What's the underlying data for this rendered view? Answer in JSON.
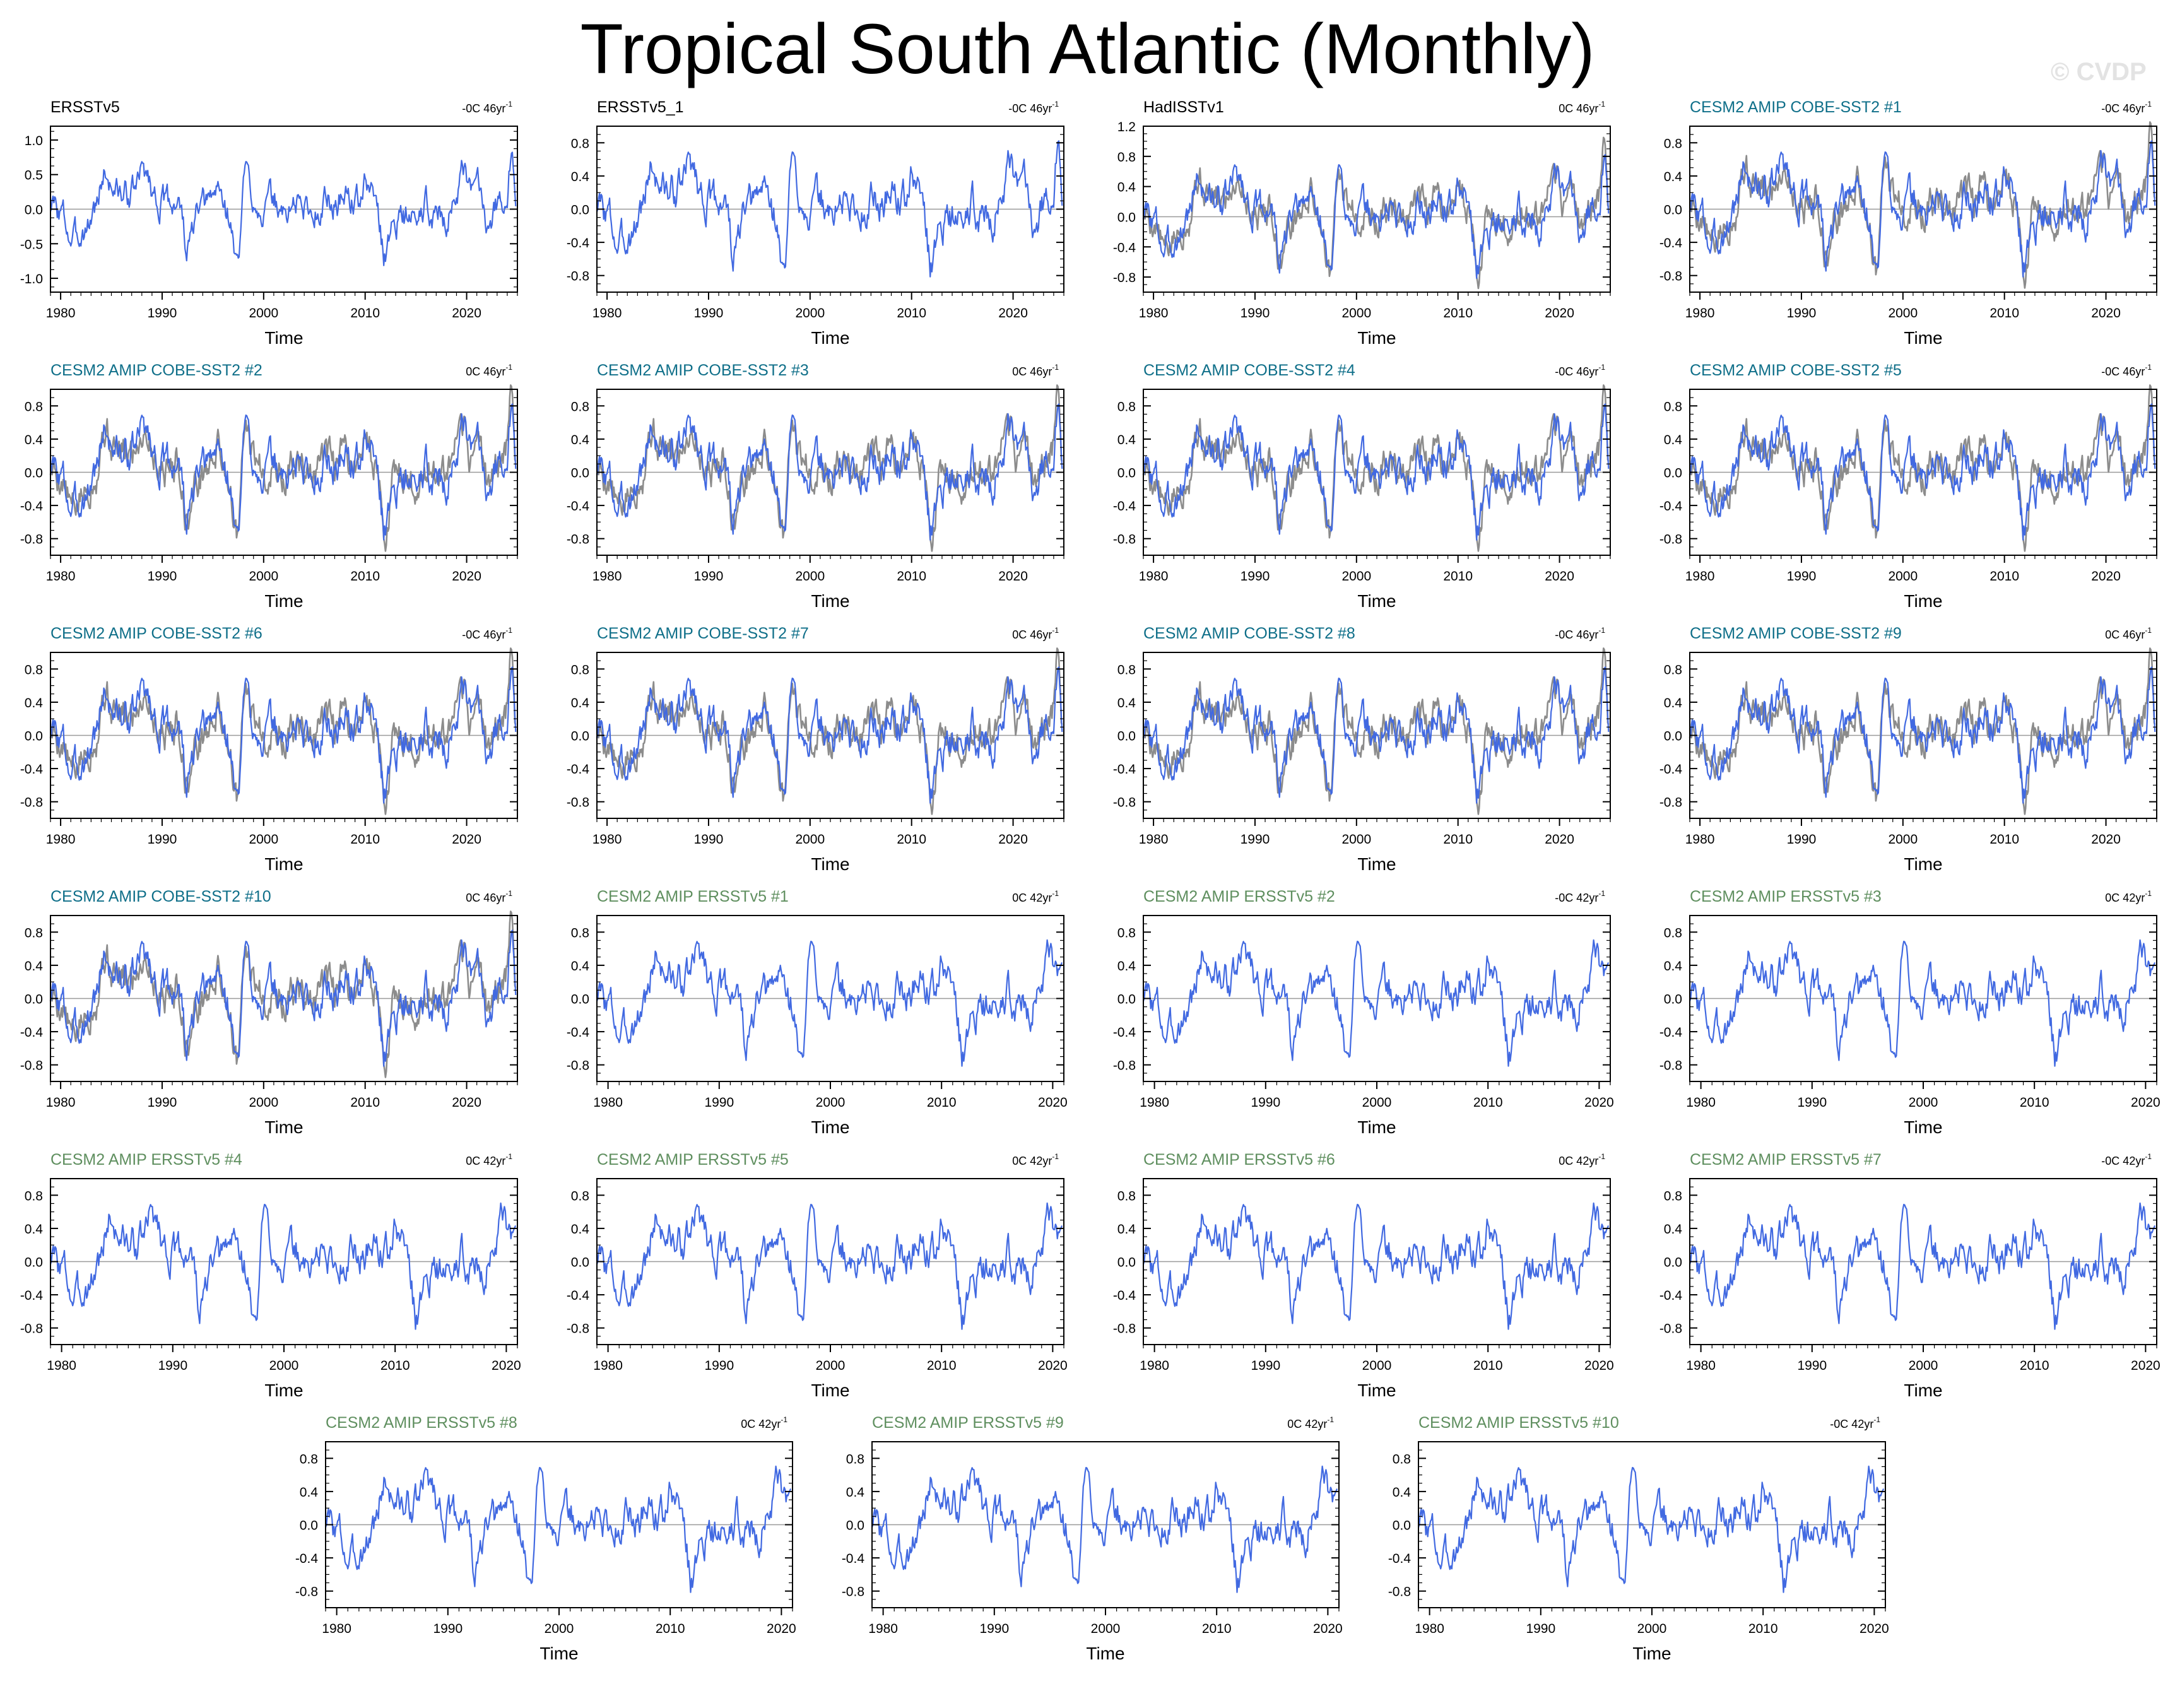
{
  "title": "Tropical South Atlantic (Monthly)",
  "watermark": "© CVDP",
  "colors": {
    "model_line": "#4169e1",
    "obs_line": "#8c8c8c",
    "title_obs": "#000000",
    "title_cobe": "#0f6f89",
    "title_ersst": "#5f8f5f",
    "zero_line": "#9a9a9a"
  },
  "chart_data": [
    {
      "type": "line",
      "title": "ERSSTv5",
      "title_group": "obs",
      "trend": "-0C 46yr",
      "trend_unit": "-1",
      "xlabel": "Time",
      "xlim": [
        1979,
        2025
      ],
      "ylim": [
        -1.2,
        1.2
      ],
      "yticks": [
        1.0,
        0.5,
        0.0,
        -0.5,
        -1.0
      ],
      "ytick_labels": [
        "1.0",
        "0.5",
        "0.0",
        "-0.5",
        "-1.0"
      ],
      "xticks": [
        1980,
        1990,
        2000,
        2010,
        2020
      ],
      "series": [
        {
          "seed": 3,
          "end_year": 2024.9
        }
      ]
    },
    {
      "type": "line",
      "title": "ERSSTv5_1",
      "title_group": "obs",
      "trend": "-0C 46yr",
      "trend_unit": "-1",
      "xlabel": "Time",
      "xlim": [
        1979,
        2025
      ],
      "ylim": [
        -1.0,
        1.0
      ],
      "yticks": [
        0.8,
        0.4,
        0.0,
        -0.4,
        -0.8
      ],
      "ytick_labels": [
        "0.8",
        "0.4",
        "0.0",
        "-0.4",
        "-0.8"
      ],
      "xticks": [
        1980,
        1990,
        2000,
        2010,
        2020
      ],
      "series": [
        {
          "seed": 3,
          "end_year": 2024.9
        }
      ]
    },
    {
      "type": "line",
      "title": "HadISSTv1",
      "title_group": "obs",
      "trend": "0C 46yr",
      "trend_unit": "-1",
      "xlabel": "Time",
      "xlim": [
        1979,
        2025
      ],
      "ylim": [
        -1.0,
        1.2
      ],
      "yticks": [
        1.2,
        0.8,
        0.4,
        0.0,
        -0.4,
        -0.8
      ],
      "ytick_labels": [
        "1.2",
        "0.8",
        "0.4",
        "0.0",
        "-0.4",
        "-0.8"
      ],
      "xticks": [
        1980,
        1990,
        2000,
        2010,
        2020
      ],
      "series": [
        {
          "seed": 5,
          "end_year": 2024.9
        },
        {
          "seed": 3,
          "end_year": 2024.9
        }
      ]
    },
    {
      "type": "line",
      "title": "CESM2 AMIP COBE-SST2 #1",
      "title_group": "cobe",
      "trend": "-0C 46yr",
      "trend_unit": "-1",
      "xlabel": "Time",
      "xlim": [
        1979,
        2025
      ],
      "ylim": [
        -1.0,
        1.0
      ],
      "yticks": [
        0.8,
        0.4,
        0.0,
        -0.4,
        -0.8
      ],
      "ytick_labels": [
        "0.8",
        "0.4",
        "0.0",
        "-0.4",
        "-0.8"
      ],
      "xticks": [
        1980,
        1990,
        2000,
        2010,
        2020
      ],
      "series": [
        {
          "seed": 5,
          "end_year": 2024.9
        },
        {
          "seed": 3,
          "end_year": 2024.9
        }
      ]
    },
    {
      "type": "line",
      "title": "CESM2 AMIP COBE-SST2 #2",
      "title_group": "cobe",
      "trend": "0C 46yr",
      "trend_unit": "-1",
      "xlabel": "Time",
      "xlim": [
        1979,
        2025
      ],
      "ylim": [
        -1.0,
        1.0
      ],
      "yticks": [
        0.8,
        0.4,
        0.0,
        -0.4,
        -0.8
      ],
      "ytick_labels": [
        "0.8",
        "0.4",
        "0.0",
        "-0.4",
        "-0.8"
      ],
      "xticks": [
        1980,
        1990,
        2000,
        2010,
        2020
      ],
      "series": [
        {
          "seed": 5,
          "end_year": 2024.9
        },
        {
          "seed": 3,
          "end_year": 2024.9
        }
      ]
    },
    {
      "type": "line",
      "title": "CESM2 AMIP COBE-SST2 #3",
      "title_group": "cobe",
      "trend": "0C 46yr",
      "trend_unit": "-1",
      "xlabel": "Time",
      "xlim": [
        1979,
        2025
      ],
      "ylim": [
        -1.0,
        1.0
      ],
      "yticks": [
        0.8,
        0.4,
        0.0,
        -0.4,
        -0.8
      ],
      "ytick_labels": [
        "0.8",
        "0.4",
        "0.0",
        "-0.4",
        "-0.8"
      ],
      "xticks": [
        1980,
        1990,
        2000,
        2010,
        2020
      ],
      "series": [
        {
          "seed": 5,
          "end_year": 2024.9
        },
        {
          "seed": 3,
          "end_year": 2024.9
        }
      ]
    },
    {
      "type": "line",
      "title": "CESM2 AMIP COBE-SST2 #4",
      "title_group": "cobe",
      "trend": "-0C 46yr",
      "trend_unit": "-1",
      "xlabel": "Time",
      "xlim": [
        1979,
        2025
      ],
      "ylim": [
        -1.0,
        1.0
      ],
      "yticks": [
        0.8,
        0.4,
        0.0,
        -0.4,
        -0.8
      ],
      "ytick_labels": [
        "0.8",
        "0.4",
        "0.0",
        "-0.4",
        "-0.8"
      ],
      "xticks": [
        1980,
        1990,
        2000,
        2010,
        2020
      ],
      "series": [
        {
          "seed": 5,
          "end_year": 2024.9
        },
        {
          "seed": 3,
          "end_year": 2024.9
        }
      ]
    },
    {
      "type": "line",
      "title": "CESM2 AMIP COBE-SST2 #5",
      "title_group": "cobe",
      "trend": "-0C 46yr",
      "trend_unit": "-1",
      "xlabel": "Time",
      "xlim": [
        1979,
        2025
      ],
      "ylim": [
        -1.0,
        1.0
      ],
      "yticks": [
        0.8,
        0.4,
        0.0,
        -0.4,
        -0.8
      ],
      "ytick_labels": [
        "0.8",
        "0.4",
        "0.0",
        "-0.4",
        "-0.8"
      ],
      "xticks": [
        1980,
        1990,
        2000,
        2010,
        2020
      ],
      "series": [
        {
          "seed": 5,
          "end_year": 2024.9
        },
        {
          "seed": 3,
          "end_year": 2024.9
        }
      ]
    },
    {
      "type": "line",
      "title": "CESM2 AMIP COBE-SST2 #6",
      "title_group": "cobe",
      "trend": "-0C 46yr",
      "trend_unit": "-1",
      "xlabel": "Time",
      "xlim": [
        1979,
        2025
      ],
      "ylim": [
        -1.0,
        1.0
      ],
      "yticks": [
        0.8,
        0.4,
        0.0,
        -0.4,
        -0.8
      ],
      "ytick_labels": [
        "0.8",
        "0.4",
        "0.0",
        "-0.4",
        "-0.8"
      ],
      "xticks": [
        1980,
        1990,
        2000,
        2010,
        2020
      ],
      "series": [
        {
          "seed": 5,
          "end_year": 2024.9
        },
        {
          "seed": 3,
          "end_year": 2024.9
        }
      ]
    },
    {
      "type": "line",
      "title": "CESM2 AMIP COBE-SST2 #7",
      "title_group": "cobe",
      "trend": "0C 46yr",
      "trend_unit": "-1",
      "xlabel": "Time",
      "xlim": [
        1979,
        2025
      ],
      "ylim": [
        -1.0,
        1.0
      ],
      "yticks": [
        0.8,
        0.4,
        0.0,
        -0.4,
        -0.8
      ],
      "ytick_labels": [
        "0.8",
        "0.4",
        "0.0",
        "-0.4",
        "-0.8"
      ],
      "xticks": [
        1980,
        1990,
        2000,
        2010,
        2020
      ],
      "series": [
        {
          "seed": 5,
          "end_year": 2024.9
        },
        {
          "seed": 3,
          "end_year": 2024.9
        }
      ]
    },
    {
      "type": "line",
      "title": "CESM2 AMIP COBE-SST2 #8",
      "title_group": "cobe",
      "trend": "-0C 46yr",
      "trend_unit": "-1",
      "xlabel": "Time",
      "xlim": [
        1979,
        2025
      ],
      "ylim": [
        -1.0,
        1.0
      ],
      "yticks": [
        0.8,
        0.4,
        0.0,
        -0.4,
        -0.8
      ],
      "ytick_labels": [
        "0.8",
        "0.4",
        "0.0",
        "-0.4",
        "-0.8"
      ],
      "xticks": [
        1980,
        1990,
        2000,
        2010,
        2020
      ],
      "series": [
        {
          "seed": 5,
          "end_year": 2024.9
        },
        {
          "seed": 3,
          "end_year": 2024.9
        }
      ]
    },
    {
      "type": "line",
      "title": "CESM2 AMIP COBE-SST2 #9",
      "title_group": "cobe",
      "trend": "0C 46yr",
      "trend_unit": "-1",
      "xlabel": "Time",
      "xlim": [
        1979,
        2025
      ],
      "ylim": [
        -1.0,
        1.0
      ],
      "yticks": [
        0.8,
        0.4,
        0.0,
        -0.4,
        -0.8
      ],
      "ytick_labels": [
        "0.8",
        "0.4",
        "0.0",
        "-0.4",
        "-0.8"
      ],
      "xticks": [
        1980,
        1990,
        2000,
        2010,
        2020
      ],
      "series": [
        {
          "seed": 5,
          "end_year": 2024.9
        },
        {
          "seed": 3,
          "end_year": 2024.9
        }
      ]
    },
    {
      "type": "line",
      "title": "CESM2 AMIP COBE-SST2 #10",
      "title_group": "cobe",
      "trend": "0C 46yr",
      "trend_unit": "-1",
      "xlabel": "Time",
      "xlim": [
        1979,
        2025
      ],
      "ylim": [
        -1.0,
        1.0
      ],
      "yticks": [
        0.8,
        0.4,
        0.0,
        -0.4,
        -0.8
      ],
      "ytick_labels": [
        "0.8",
        "0.4",
        "0.0",
        "-0.4",
        "-0.8"
      ],
      "xticks": [
        1980,
        1990,
        2000,
        2010,
        2020
      ],
      "series": [
        {
          "seed": 5,
          "end_year": 2024.9
        },
        {
          "seed": 3,
          "end_year": 2024.9
        }
      ]
    },
    {
      "type": "line",
      "title": "CESM2 AMIP ERSSTv5 #1",
      "title_group": "ersst",
      "trend": "0C 42yr",
      "trend_unit": "-1",
      "xlabel": "Time",
      "xlim": [
        1979,
        2021
      ],
      "ylim": [
        -1.0,
        1.0
      ],
      "yticks": [
        0.8,
        0.4,
        0.0,
        -0.4,
        -0.8
      ],
      "ytick_labels": [
        "0.8",
        "0.4",
        "0.0",
        "-0.4",
        "-0.8"
      ],
      "xticks": [
        1980,
        1990,
        2000,
        2010,
        2020
      ],
      "series": [
        {
          "seed": 3,
          "end_year": 2020.9
        }
      ]
    },
    {
      "type": "line",
      "title": "CESM2 AMIP ERSSTv5 #2",
      "title_group": "ersst",
      "trend": "-0C 42yr",
      "trend_unit": "-1",
      "xlabel": "Time",
      "xlim": [
        1979,
        2021
      ],
      "ylim": [
        -1.0,
        1.0
      ],
      "yticks": [
        0.8,
        0.4,
        0.0,
        -0.4,
        -0.8
      ],
      "ytick_labels": [
        "0.8",
        "0.4",
        "0.0",
        "-0.4",
        "-0.8"
      ],
      "xticks": [
        1980,
        1990,
        2000,
        2010,
        2020
      ],
      "series": [
        {
          "seed": 3,
          "end_year": 2020.9
        }
      ]
    },
    {
      "type": "line",
      "title": "CESM2 AMIP ERSSTv5 #3",
      "title_group": "ersst",
      "trend": "0C 42yr",
      "trend_unit": "-1",
      "xlabel": "Time",
      "xlim": [
        1979,
        2021
      ],
      "ylim": [
        -1.0,
        1.0
      ],
      "yticks": [
        0.8,
        0.4,
        0.0,
        -0.4,
        -0.8
      ],
      "ytick_labels": [
        "0.8",
        "0.4",
        "0.0",
        "-0.4",
        "-0.8"
      ],
      "xticks": [
        1980,
        1990,
        2000,
        2010,
        2020
      ],
      "series": [
        {
          "seed": 3,
          "end_year": 2020.9
        }
      ]
    },
    {
      "type": "line",
      "title": "CESM2 AMIP ERSSTv5 #4",
      "title_group": "ersst",
      "trend": "0C 42yr",
      "trend_unit": "-1",
      "xlabel": "Time",
      "xlim": [
        1979,
        2021
      ],
      "ylim": [
        -1.0,
        1.0
      ],
      "yticks": [
        0.8,
        0.4,
        0.0,
        -0.4,
        -0.8
      ],
      "ytick_labels": [
        "0.8",
        "0.4",
        "0.0",
        "-0.4",
        "-0.8"
      ],
      "xticks": [
        1980,
        1990,
        2000,
        2010,
        2020
      ],
      "series": [
        {
          "seed": 3,
          "end_year": 2020.9
        }
      ]
    },
    {
      "type": "line",
      "title": "CESM2 AMIP ERSSTv5 #5",
      "title_group": "ersst",
      "trend": "0C 42yr",
      "trend_unit": "-1",
      "xlabel": "Time",
      "xlim": [
        1979,
        2021
      ],
      "ylim": [
        -1.0,
        1.0
      ],
      "yticks": [
        0.8,
        0.4,
        0.0,
        -0.4,
        -0.8
      ],
      "ytick_labels": [
        "0.8",
        "0.4",
        "0.0",
        "-0.4",
        "-0.8"
      ],
      "xticks": [
        1980,
        1990,
        2000,
        2010,
        2020
      ],
      "series": [
        {
          "seed": 3,
          "end_year": 2020.9
        }
      ]
    },
    {
      "type": "line",
      "title": "CESM2 AMIP ERSSTv5 #6",
      "title_group": "ersst",
      "trend": "0C 42yr",
      "trend_unit": "-1",
      "xlabel": "Time",
      "xlim": [
        1979,
        2021
      ],
      "ylim": [
        -1.0,
        1.0
      ],
      "yticks": [
        0.8,
        0.4,
        0.0,
        -0.4,
        -0.8
      ],
      "ytick_labels": [
        "0.8",
        "0.4",
        "0.0",
        "-0.4",
        "-0.8"
      ],
      "xticks": [
        1980,
        1990,
        2000,
        2010,
        2020
      ],
      "series": [
        {
          "seed": 3,
          "end_year": 2020.9
        }
      ]
    },
    {
      "type": "line",
      "title": "CESM2 AMIP ERSSTv5 #7",
      "title_group": "ersst",
      "trend": "-0C 42yr",
      "trend_unit": "-1",
      "xlabel": "Time",
      "xlim": [
        1979,
        2021
      ],
      "ylim": [
        -1.0,
        1.0
      ],
      "yticks": [
        0.8,
        0.4,
        0.0,
        -0.4,
        -0.8
      ],
      "ytick_labels": [
        "0.8",
        "0.4",
        "0.0",
        "-0.4",
        "-0.8"
      ],
      "xticks": [
        1980,
        1990,
        2000,
        2010,
        2020
      ],
      "series": [
        {
          "seed": 3,
          "end_year": 2020.9
        }
      ]
    },
    {
      "type": "line",
      "title": "CESM2 AMIP ERSSTv5 #8",
      "title_group": "ersst",
      "trend": "0C 42yr",
      "trend_unit": "-1",
      "xlabel": "Time",
      "xlim": [
        1979,
        2021
      ],
      "ylim": [
        -1.0,
        1.0
      ],
      "yticks": [
        0.8,
        0.4,
        0.0,
        -0.4,
        -0.8
      ],
      "ytick_labels": [
        "0.8",
        "0.4",
        "0.0",
        "-0.4",
        "-0.8"
      ],
      "xticks": [
        1980,
        1990,
        2000,
        2010,
        2020
      ],
      "series": [
        {
          "seed": 3,
          "end_year": 2020.9
        }
      ]
    },
    {
      "type": "line",
      "title": "CESM2 AMIP ERSSTv5 #9",
      "title_group": "ersst",
      "trend": "0C 42yr",
      "trend_unit": "-1",
      "xlabel": "Time",
      "xlim": [
        1979,
        2021
      ],
      "ylim": [
        -1.0,
        1.0
      ],
      "yticks": [
        0.8,
        0.4,
        0.0,
        -0.4,
        -0.8
      ],
      "ytick_labels": [
        "0.8",
        "0.4",
        "0.0",
        "-0.4",
        "-0.8"
      ],
      "xticks": [
        1980,
        1990,
        2000,
        2010,
        2020
      ],
      "series": [
        {
          "seed": 3,
          "end_year": 2020.9
        }
      ]
    },
    {
      "type": "line",
      "title": "CESM2 AMIP ERSSTv5 #10",
      "title_group": "ersst",
      "trend": "-0C 42yr",
      "trend_unit": "-1",
      "xlabel": "Time",
      "xlim": [
        1979,
        2021
      ],
      "ylim": [
        -1.0,
        1.0
      ],
      "yticks": [
        0.8,
        0.4,
        0.0,
        -0.4,
        -0.8
      ],
      "ytick_labels": [
        "0.8",
        "0.4",
        "0.0",
        "-0.4",
        "-0.8"
      ],
      "xticks": [
        1980,
        1990,
        2000,
        2010,
        2020
      ],
      "series": [
        {
          "seed": 3,
          "end_year": 2020.9
        }
      ]
    }
  ]
}
